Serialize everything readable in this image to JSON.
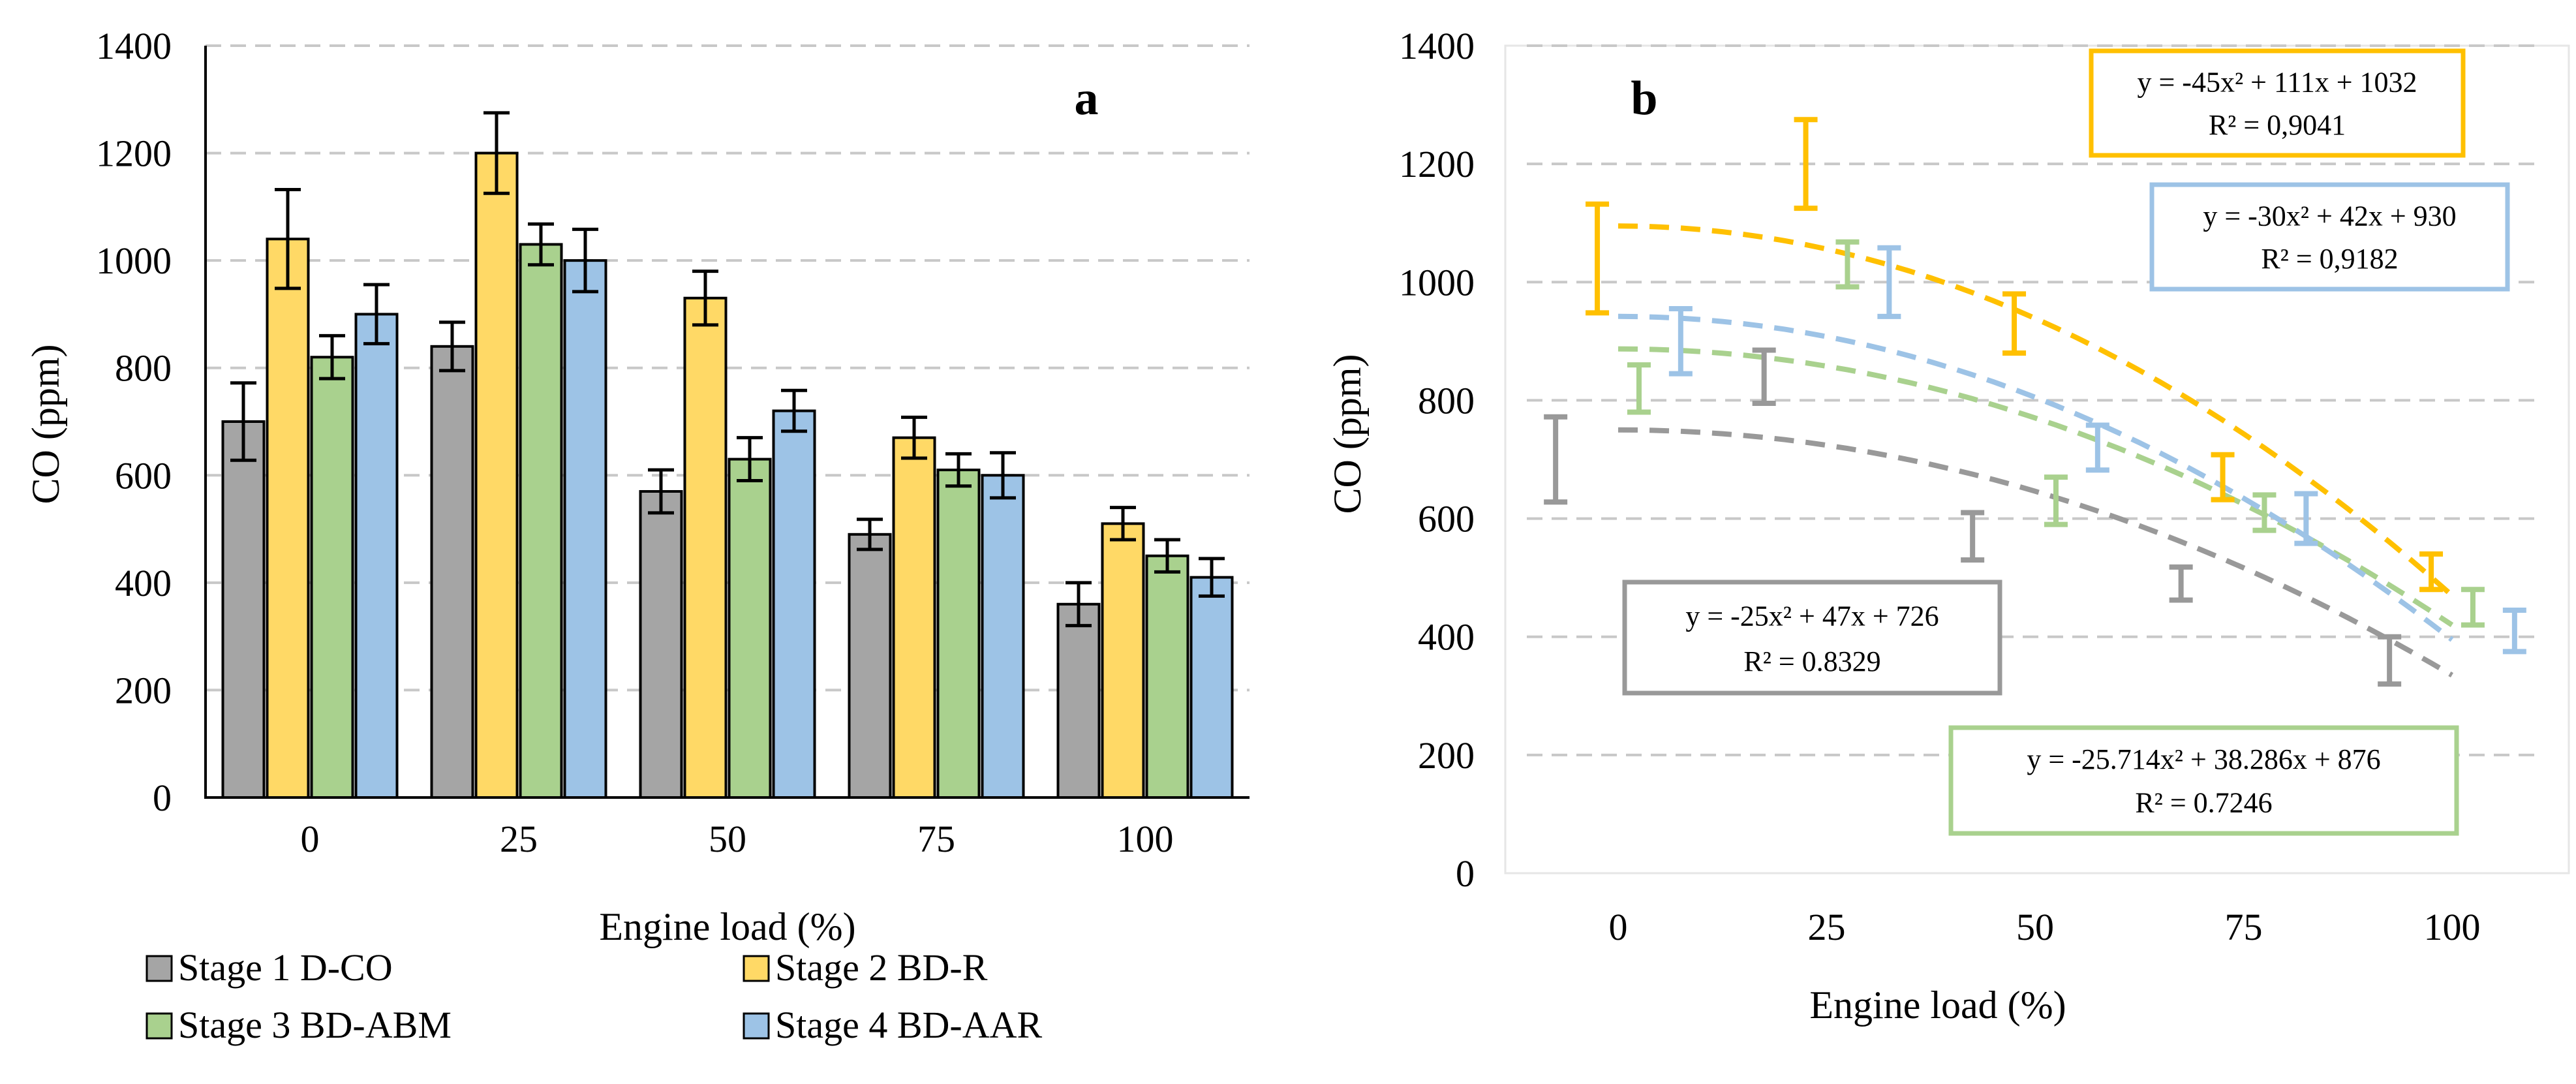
{
  "colors": {
    "stage1": "#a5a5a5",
    "stage2": "#ffd966",
    "stage3": "#a9d18e",
    "stage4": "#9dc3e6",
    "stage1_fit": "#999999",
    "stage2_fit": "#ffc000",
    "stage3_fit": "#a9d18e",
    "stage4_fit": "#9dc3e6",
    "grid": "#c8c8c8"
  },
  "chart_data": [
    {
      "type": "bar",
      "panel": "a",
      "title": "",
      "xlabel": "Engine load (%)",
      "ylabel": "CO (ppm)",
      "ylim": [
        0,
        1400
      ],
      "yticks": [
        "0",
        "200",
        "400",
        "600",
        "800",
        "1000",
        "1200",
        "1400"
      ],
      "categories": [
        "0",
        "25",
        "50",
        "75",
        "100"
      ],
      "grid": true,
      "legend_position": "bottom",
      "series": [
        {
          "name": "Stage 1 D-CO",
          "values": [
            700,
            840,
            570,
            490,
            360
          ],
          "errors": [
            72,
            45,
            40,
            28,
            40
          ]
        },
        {
          "name": "Stage 2 BD-R",
          "values": [
            1040,
            1200,
            930,
            670,
            510
          ],
          "errors": [
            92,
            75,
            50,
            38,
            30
          ]
        },
        {
          "name": "Stage 3 BD-ABM",
          "values": [
            820,
            1030,
            630,
            610,
            450
          ],
          "errors": [
            40,
            38,
            40,
            30,
            30
          ]
        },
        {
          "name": "Stage 4 BD-AAR",
          "values": [
            900,
            1000,
            720,
            600,
            410
          ],
          "errors": [
            55,
            58,
            38,
            42,
            35
          ]
        }
      ]
    },
    {
      "type": "scatter",
      "panel": "b",
      "title": "",
      "xlabel": "Engine load (%)",
      "ylabel": "CO (ppm)",
      "ylim": [
        0,
        1400
      ],
      "xlim": [
        -10,
        112
      ],
      "yticks": [
        "0",
        "200",
        "400",
        "600",
        "800",
        "1000",
        "1200",
        "1400"
      ],
      "xticks": [
        "0",
        "25",
        "50",
        "75",
        "100"
      ],
      "grid": true,
      "series": [
        {
          "name": "Stage 1 D-CO",
          "x": [
            -7.5,
            17.5,
            42.5,
            67.5,
            92.5
          ],
          "values": [
            700,
            840,
            570,
            490,
            360
          ],
          "errors": [
            72,
            45,
            40,
            28,
            40
          ],
          "fit": {
            "x_start": 0,
            "x_end": 100,
            "y_start": 750,
            "y_end": 335,
            "equation": "y = -25x² + 47x + 726",
            "r2": "R² = 0.8329"
          }
        },
        {
          "name": "Stage 2 BD-R",
          "x": [
            -2.5,
            22.5,
            47.5,
            72.5,
            97.5
          ],
          "values": [
            1040,
            1200,
            930,
            670,
            510
          ],
          "errors": [
            92,
            75,
            50,
            38,
            30
          ],
          "fit": {
            "x_start": 0,
            "x_end": 100,
            "y_start": 1095,
            "y_end": 470,
            "equation": "y = -45x² + 111x + 1032",
            "r2": "R² = 0,9041"
          }
        },
        {
          "name": "Stage 3 BD-ABM",
          "x": [
            2.5,
            27.5,
            52.5,
            77.5,
            102.5
          ],
          "values": [
            820,
            1030,
            630,
            610,
            450
          ],
          "errors": [
            40,
            38,
            40,
            30,
            30
          ],
          "fit": {
            "x_start": 0,
            "x_end": 100,
            "y_start": 887,
            "y_end": 420,
            "equation": "y = -25.714x² + 38.286x + 876",
            "r2": "R² = 0.7246"
          }
        },
        {
          "name": "Stage 4 BD-AAR",
          "x": [
            7.5,
            32.5,
            57.5,
            82.5,
            107.5
          ],
          "values": [
            900,
            1000,
            720,
            600,
            410
          ],
          "errors": [
            55,
            58,
            38,
            42,
            35
          ],
          "fit": {
            "x_start": 0,
            "x_end": 100,
            "y_start": 942,
            "y_end": 395,
            "equation": "y = -30x² + 42x + 930",
            "r2": "R² = 0,9182"
          }
        }
      ]
    }
  ]
}
